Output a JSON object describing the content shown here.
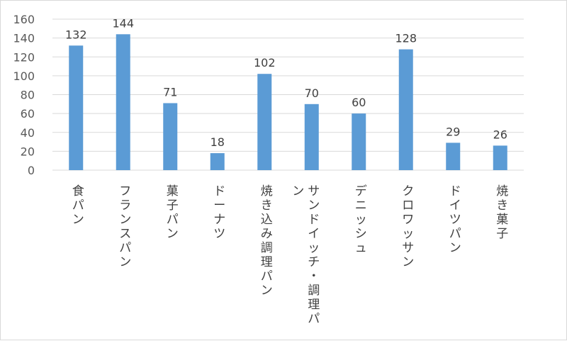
{
  "chart_data": {
    "type": "bar",
    "categories": [
      [
        "食",
        "パ",
        "ン"
      ],
      [
        "フ",
        "ラ",
        "ン",
        "ス",
        "パ",
        "ン"
      ],
      [
        "菓",
        "子",
        "パ",
        "ン"
      ],
      [
        "ド",
        "ー",
        "ナ",
        "ツ"
      ],
      [
        "焼",
        "き",
        "込",
        "み",
        "調",
        "理",
        "パ",
        "ン"
      ],
      [
        "サ",
        "ン",
        "ド",
        "イ",
        "ッ",
        "チ",
        "・",
        "調",
        "理",
        "パ",
        "ン"
      ],
      [
        "デ",
        "ニ",
        "ッ",
        "シ",
        "ュ"
      ],
      [
        "ク",
        "ロ",
        "ワ",
        "ッ",
        "サ",
        "ン"
      ],
      [
        "ド",
        "イ",
        "ツ",
        "パ",
        "ン"
      ],
      [
        "焼",
        "き",
        "菓",
        "子"
      ]
    ],
    "values": [
      132,
      144,
      71,
      18,
      102,
      70,
      60,
      128,
      29,
      26
    ],
    "ylim": [
      0,
      160
    ],
    "yticks": [
      0,
      20,
      40,
      60,
      80,
      100,
      120,
      140,
      160
    ],
    "grid": true,
    "bar_color": "#5b9bd5",
    "grid_color": "#d9d9d9"
  }
}
